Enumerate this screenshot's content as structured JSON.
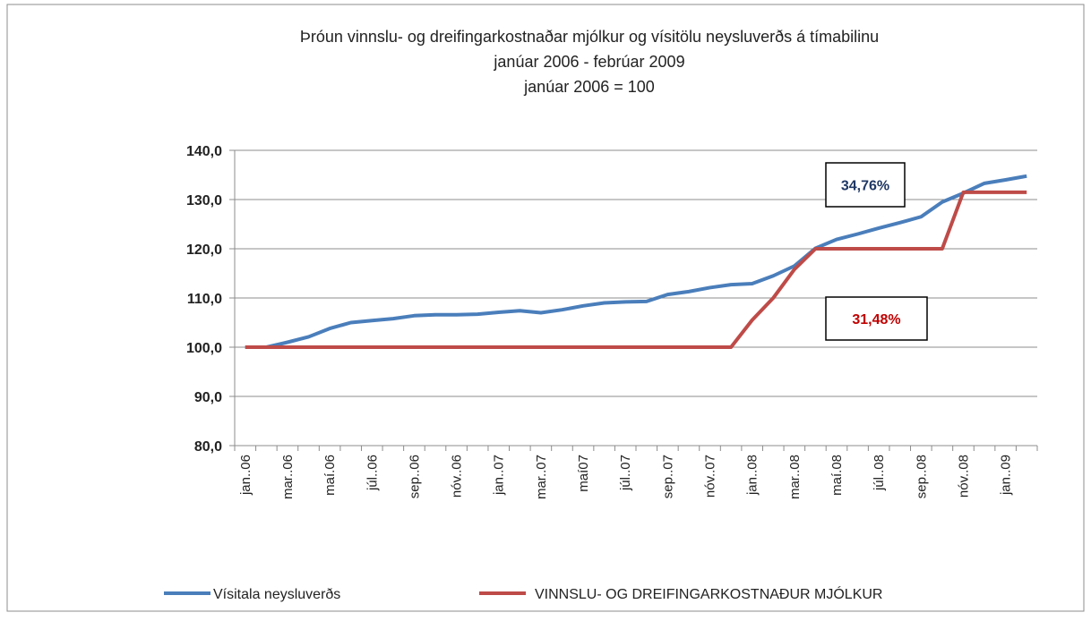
{
  "chart_data": {
    "type": "line",
    "title": [
      "Þróun vinnslu- og dreifingarkostnaðar mjólkur og vísitölu neysluverðs á tímabilinu",
      "janúar 2006 - febrúar 2009",
      "janúar 2006 = 100"
    ],
    "categories": [
      "jan..06",
      null,
      "mar..06",
      null,
      "maí.06",
      null,
      "júl..06",
      null,
      "sep..06",
      null,
      "nóv..06",
      null,
      "jan..07",
      null,
      "mar..07",
      null,
      "maí07",
      null,
      "júl..07",
      null,
      "sep..07",
      null,
      "nóv..07",
      null,
      "jan..08",
      null,
      "mar..08",
      null,
      "maí.08",
      null,
      "júl..08",
      null,
      "sep..08",
      null,
      "nóv..08",
      null,
      "jan..09",
      null
    ],
    "series": [
      {
        "name": "Vísitala neysluverðs",
        "color": "#4a7ebb",
        "values": [
          100,
          100,
          101,
          102.1,
          103.8,
          105,
          105.4,
          105.8,
          106.4,
          106.6,
          106.6,
          106.7,
          107.1,
          107.4,
          107,
          107.6,
          108.4,
          109,
          109.2,
          109.3,
          110.7,
          111.3,
          112.1,
          112.7,
          112.9,
          114.5,
          116.5,
          120.1,
          121.9,
          123,
          124.2,
          125.3,
          126.5,
          129.5,
          131.3,
          133.3,
          134,
          134.76
        ]
      },
      {
        "name": "VINNSLU- OG DREIFINGARKOSTNAÐUR MJÓLKUR",
        "color": "#be4b48",
        "values": [
          100,
          100,
          100,
          100,
          100,
          100,
          100,
          100,
          100,
          100,
          100,
          100,
          100,
          100,
          100,
          100,
          100,
          100,
          100,
          100,
          100,
          100,
          100,
          100,
          105.5,
          110,
          115.8,
          120,
          120,
          120,
          120,
          120,
          120,
          120,
          131.48,
          131.48,
          131.48,
          131.48
        ]
      }
    ],
    "ylim": [
      80,
      140
    ],
    "yticks": [
      {
        "value": 80,
        "label": "80,0"
      },
      {
        "value": 90,
        "label": "90,0"
      },
      {
        "value": 100,
        "label": "100,0"
      },
      {
        "value": 110,
        "label": "110,0"
      },
      {
        "value": 120,
        "label": "120,0"
      },
      {
        "value": 130,
        "label": "130,0"
      },
      {
        "value": 140,
        "label": "140,0"
      }
    ],
    "grid": true,
    "annotations": [
      {
        "text": "34,76%",
        "color": "#1f3864"
      },
      {
        "text": "31,48%",
        "color": "#c00000"
      }
    ]
  }
}
